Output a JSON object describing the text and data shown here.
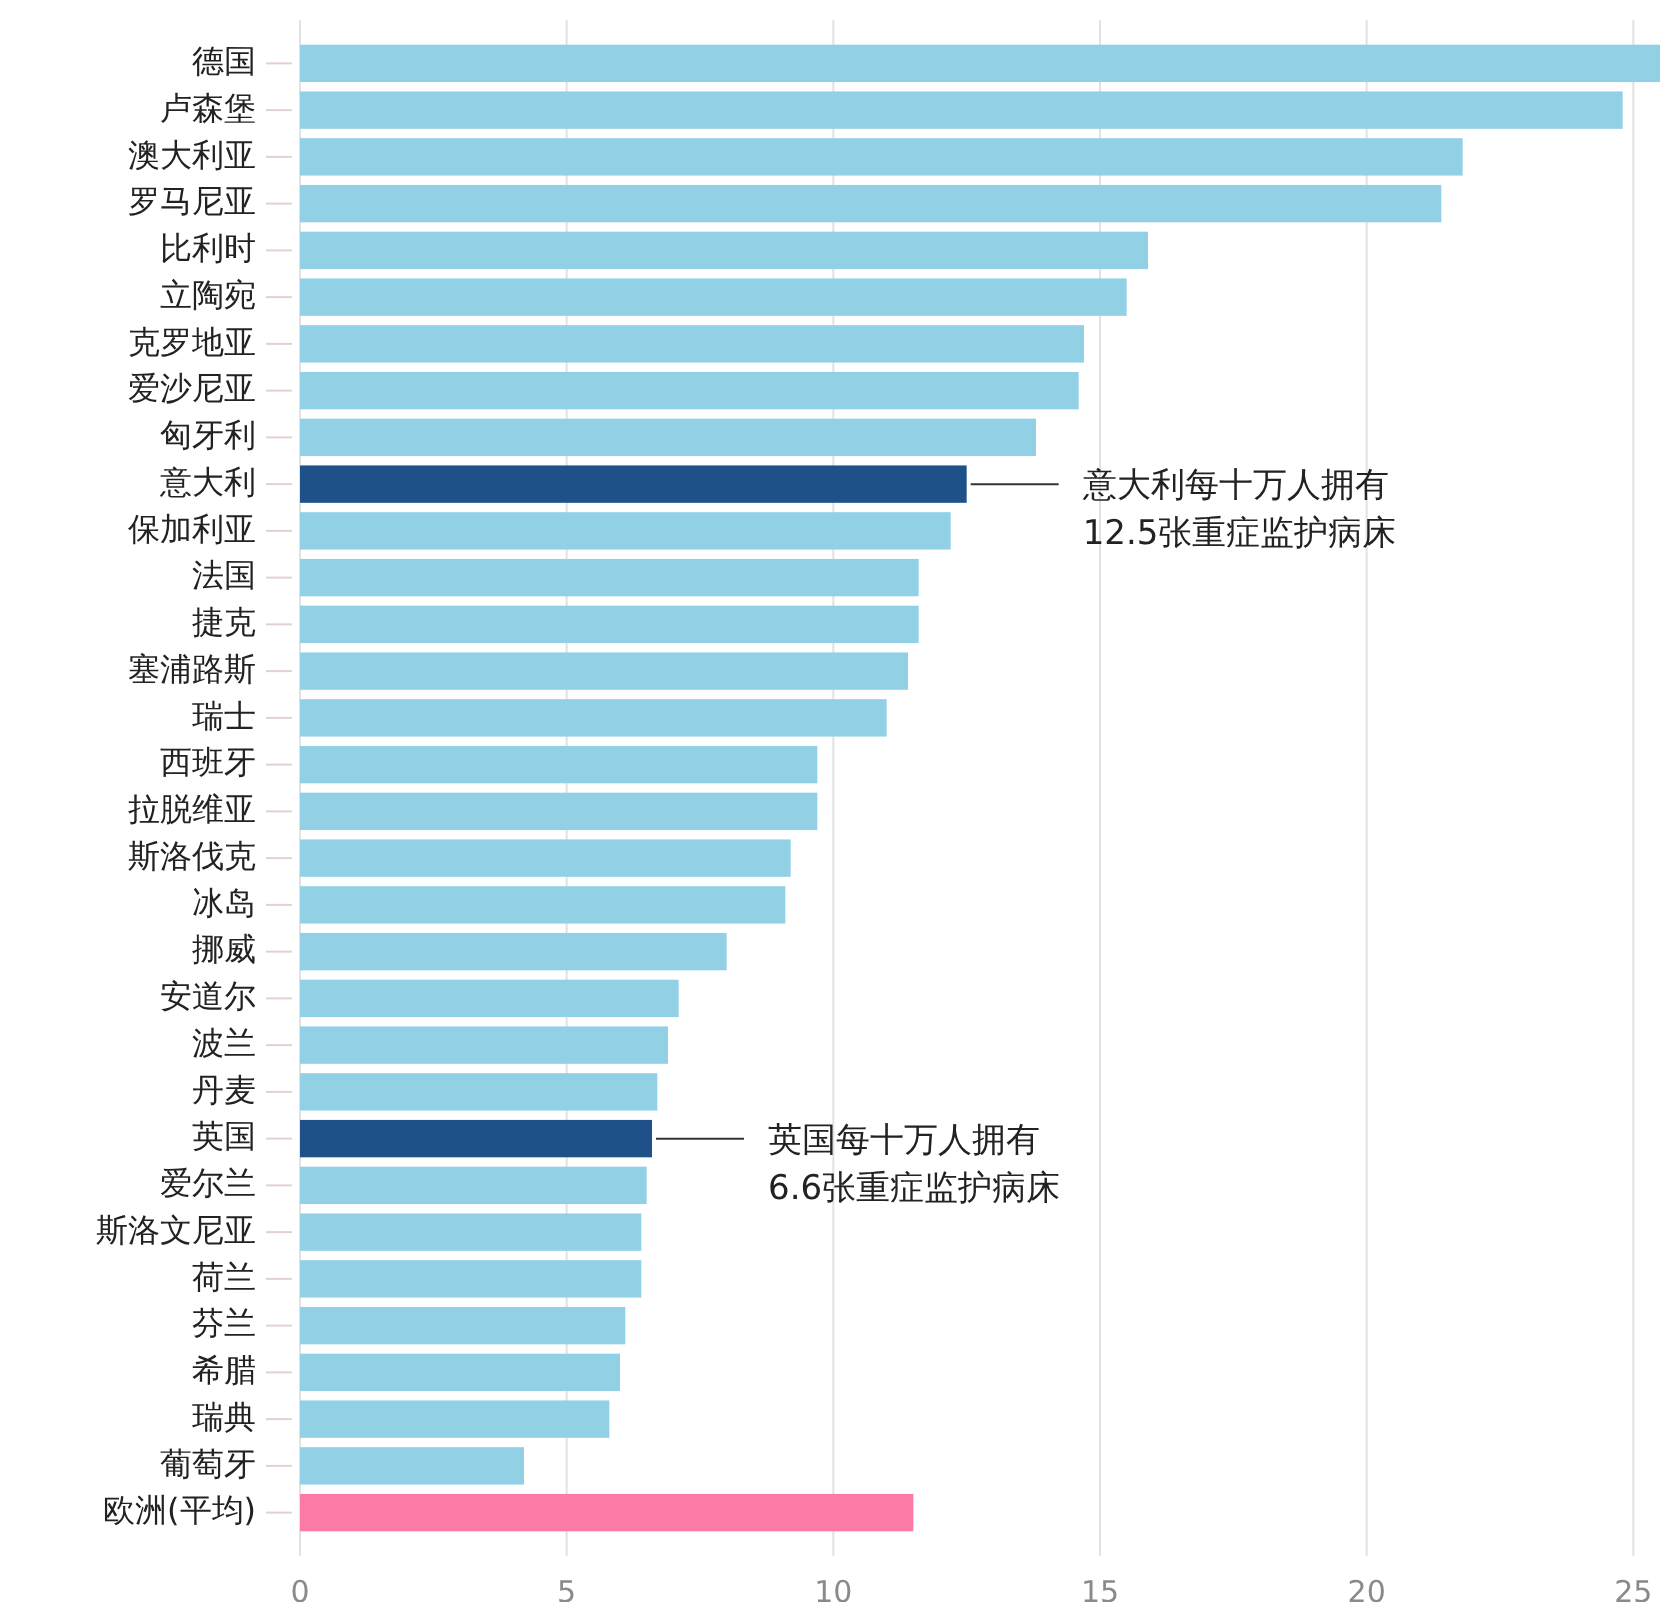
{
  "chart_data": {
    "type": "bar",
    "orientation": "horizontal",
    "categories": [
      "德国",
      "卢森堡",
      "澳大利亚",
      "罗马尼亚",
      "比利时",
      "立陶宛",
      "克罗地亚",
      "爱沙尼亚",
      "匈牙利",
      "意大利",
      "保加利亚",
      "法国",
      "捷克",
      "塞浦路斯",
      "瑞士",
      "西班牙",
      "拉脱维亚",
      "斯洛伐克",
      "冰岛",
      "挪威",
      "安道尔",
      "波兰",
      "丹麦",
      "英国",
      "爱尔兰",
      "斯洛文尼亚",
      "荷兰",
      "芬兰",
      "希腊",
      "瑞典",
      "葡萄牙",
      "欧洲(平均)"
    ],
    "values": [
      25.5,
      24.8,
      21.8,
      21.4,
      15.9,
      15.5,
      14.7,
      14.6,
      13.8,
      12.5,
      12.2,
      11.6,
      11.6,
      11.4,
      11.0,
      9.7,
      9.7,
      9.2,
      9.1,
      8.0,
      7.1,
      6.9,
      6.7,
      6.6,
      6.5,
      6.4,
      6.4,
      6.1,
      6.0,
      5.8,
      4.2,
      11.5
    ],
    "colors": [
      "#92d1e5",
      "#92d1e5",
      "#92d1e5",
      "#92d1e5",
      "#92d1e5",
      "#92d1e5",
      "#92d1e5",
      "#92d1e5",
      "#92d1e5",
      "#1f5189",
      "#92d1e5",
      "#92d1e5",
      "#92d1e5",
      "#92d1e5",
      "#92d1e5",
      "#92d1e5",
      "#92d1e5",
      "#92d1e5",
      "#92d1e5",
      "#92d1e5",
      "#92d1e5",
      "#92d1e5",
      "#92d1e5",
      "#1f5189",
      "#92d1e5",
      "#92d1e5",
      "#92d1e5",
      "#92d1e5",
      "#92d1e5",
      "#92d1e5",
      "#92d1e5",
      "#fb7ba6"
    ],
    "xlim": [
      0,
      25.5
    ],
    "xticks": [
      0,
      5,
      10,
      15,
      20,
      25
    ],
    "grid": "x",
    "annotations": [
      {
        "text": "意大利每十万人拥有\n12.5张重症监护病床",
        "x": 12.5,
        "y": "意大利"
      },
      {
        "text": "英国每十万人拥有\n6.6张重症监护病床",
        "x": 6.6,
        "y": "英国"
      }
    ]
  }
}
